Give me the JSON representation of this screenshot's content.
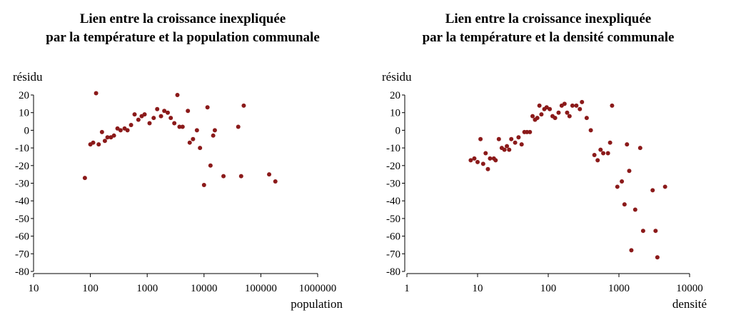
{
  "chart_data": [
    {
      "type": "scatter",
      "title_lines": [
        "Lien entre la croissance inexpliquée",
        "par la température et la population communale"
      ],
      "ylabel": "résidu",
      "xlabel": "population",
      "x_scale": "log",
      "xlim": [
        10,
        1000000
      ],
      "ylim": [
        -80,
        20
      ],
      "x_ticks": [
        10,
        100,
        1000,
        10000,
        100000,
        1000000
      ],
      "x_tick_labels": [
        "10",
        "100",
        "1000",
        "10000",
        "100000",
        "1000000"
      ],
      "y_ticks": [
        20,
        10,
        0,
        -10,
        -20,
        -30,
        -40,
        -50,
        -60,
        -70,
        -80
      ],
      "y_tick_labels": [
        "20",
        "10",
        "0",
        "-10",
        "-20",
        "-30",
        "-40",
        "-50",
        "-60",
        "-70",
        "-80"
      ],
      "point_color": "#8b1a1a",
      "x": [
        80,
        100,
        112,
        126,
        140,
        160,
        180,
        200,
        230,
        260,
        300,
        340,
        400,
        450,
        520,
        600,
        700,
        800,
        900,
        1100,
        1300,
        1500,
        1750,
        2000,
        2300,
        2600,
        3000,
        3400,
        3700,
        4200,
        5200,
        5600,
        6400,
        7500,
        8500,
        10000,
        11500,
        13000,
        14500,
        15500,
        22000,
        40000,
        45000,
        50000,
        140000,
        180000
      ],
      "y": [
        -27,
        -8,
        -7,
        21,
        -8,
        -1,
        -6,
        -4,
        -4,
        -3,
        1,
        0,
        1,
        0,
        3,
        9,
        6,
        8,
        9,
        4,
        7,
        12,
        8,
        11,
        10,
        7,
        4,
        20,
        2,
        2,
        11,
        -7,
        -5,
        0,
        -10,
        -31,
        13,
        -20,
        -3,
        0,
        -26,
        2,
        -26,
        14,
        -25,
        -29
      ]
    },
    {
      "type": "scatter",
      "title_lines": [
        "Lien entre la croissance inexpliquée",
        "par la température et la densité communale"
      ],
      "ylabel": "résidu",
      "xlabel": "densité",
      "x_scale": "log",
      "xlim": [
        1,
        10000
      ],
      "ylim": [
        -80,
        20
      ],
      "x_ticks": [
        1,
        10,
        100,
        1000,
        10000
      ],
      "x_tick_labels": [
        "1",
        "10",
        "100",
        "1000",
        "10000"
      ],
      "y_ticks": [
        20,
        10,
        0,
        -10,
        -20,
        -30,
        -40,
        -50,
        -60,
        -70,
        -80
      ],
      "y_tick_labels": [
        "20",
        "10",
        "0",
        "-10",
        "-20",
        "-30",
        "-40",
        "-50",
        "-60",
        "-70",
        "-80"
      ],
      "point_color": "#8b1a1a",
      "x": [
        8,
        9,
        10,
        11,
        12,
        13,
        14,
        15,
        17,
        18,
        20,
        22,
        24,
        26,
        28,
        30,
        34,
        38,
        42,
        46,
        50,
        55,
        60,
        65,
        70,
        75,
        80,
        88,
        95,
        105,
        115,
        125,
        140,
        155,
        170,
        185,
        200,
        220,
        250,
        280,
        300,
        350,
        400,
        450,
        500,
        550,
        600,
        700,
        750,
        800,
        950,
        1100,
        1200,
        1300,
        1400,
        1500,
        1700,
        2000,
        2200,
        3000,
        3300,
        3500,
        4500
      ],
      "y": [
        -17,
        -16,
        -18,
        -5,
        -19,
        -13,
        -22,
        -16,
        -16,
        -17,
        -5,
        -10,
        -11,
        -9,
        -11,
        -5,
        -7,
        -4,
        -8,
        -1,
        -1,
        -1,
        8,
        6,
        7,
        14,
        9,
        12,
        13,
        12,
        8,
        7,
        10,
        14,
        15,
        10,
        8,
        14,
        14,
        12,
        16,
        7,
        0,
        -14,
        -17,
        -11,
        -13,
        -13,
        -7,
        14,
        -32,
        -29,
        -42,
        -8,
        -23,
        -68,
        -45,
        -10,
        -57,
        -34,
        -57,
        -72,
        -32
      ]
    }
  ]
}
